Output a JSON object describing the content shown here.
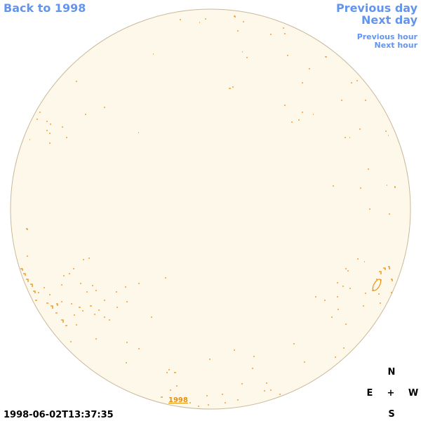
{
  "nav": {
    "back": "Back to 1998",
    "previous_day": "Previous day",
    "next_day": "Next day",
    "previous_hour": "Previous hour",
    "next_hour": "Next hour"
  },
  "timestamp": "1998-06-02T13:37:35",
  "compass": {
    "north": "N",
    "east": "E",
    "center": "+",
    "west": "W",
    "south": "S"
  },
  "disk_label": "1998"
}
